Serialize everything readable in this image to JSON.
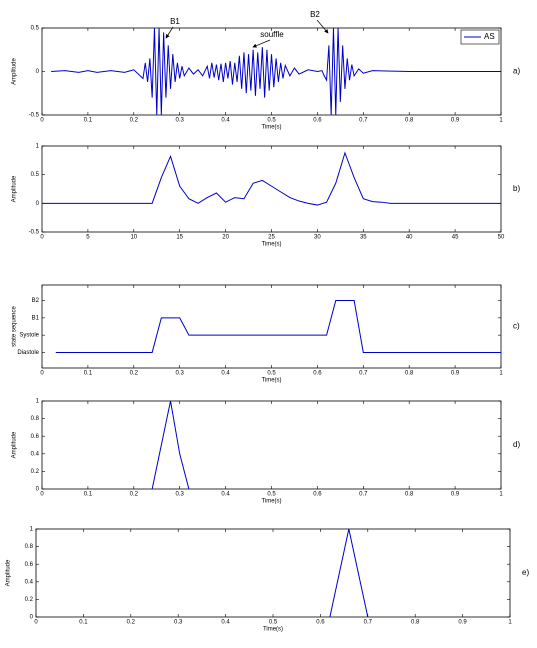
{
  "chart_data": [
    {
      "type": "line",
      "label": "a)",
      "xlabel": "Time(s)",
      "ylabel": "Amplitude",
      "xlim": [
        0,
        1
      ],
      "xticks": [
        0,
        0.1,
        0.2,
        0.3,
        0.4,
        0.5,
        0.6,
        0.7,
        0.8,
        0.9,
        1
      ],
      "ylim": [
        -0.5,
        0.5
      ],
      "yticks": [
        -0.5,
        0,
        0.5
      ],
      "legend": "upper right",
      "annotations": [
        "B1",
        "souffle",
        "B2"
      ],
      "series": [
        {
          "name": "AS",
          "color": "#0000cc",
          "x": [
            0.02,
            0.05,
            0.08,
            0.1,
            0.12,
            0.15,
            0.18,
            0.2,
            0.22,
            0.225,
            0.23,
            0.235,
            0.24,
            0.245,
            0.25,
            0.255,
            0.26,
            0.265,
            0.27,
            0.275,
            0.28,
            0.285,
            0.29,
            0.295,
            0.3,
            0.305,
            0.31,
            0.32,
            0.33,
            0.34,
            0.35,
            0.36,
            0.365,
            0.37,
            0.375,
            0.38,
            0.385,
            0.39,
            0.395,
            0.4,
            0.405,
            0.41,
            0.415,
            0.42,
            0.425,
            0.43,
            0.435,
            0.44,
            0.445,
            0.45,
            0.455,
            0.46,
            0.465,
            0.47,
            0.475,
            0.48,
            0.485,
            0.49,
            0.495,
            0.5,
            0.505,
            0.51,
            0.515,
            0.52,
            0.525,
            0.53,
            0.54,
            0.55,
            0.56,
            0.58,
            0.6,
            0.61,
            0.615,
            0.62,
            0.625,
            0.63,
            0.635,
            0.64,
            0.645,
            0.65,
            0.655,
            0.66,
            0.665,
            0.67,
            0.675,
            0.68,
            0.69,
            0.7,
            0.72,
            0.8,
            0.9,
            1.0
          ],
          "values": [
            0,
            0.01,
            -0.01,
            0.01,
            -0.01,
            0.01,
            -0.01,
            0.02,
            -0.08,
            0.1,
            -0.12,
            0.15,
            -0.3,
            0.5,
            -0.5,
            0.5,
            -0.5,
            0.45,
            -0.3,
            0.3,
            -0.2,
            0.2,
            -0.12,
            0.1,
            -0.08,
            0.06,
            -0.05,
            0.04,
            -0.03,
            0.02,
            -0.05,
            0.06,
            -0.08,
            0.1,
            -0.07,
            0.08,
            -0.1,
            0.09,
            -0.12,
            0.1,
            -0.08,
            0.12,
            -0.15,
            0.1,
            -0.12,
            0.18,
            -0.2,
            0.22,
            -0.25,
            0.2,
            -0.22,
            0.25,
            -0.28,
            0.22,
            -0.2,
            0.28,
            -0.3,
            0.25,
            -0.22,
            0.2,
            -0.18,
            0.15,
            -0.12,
            0.1,
            -0.08,
            0.07,
            -0.05,
            0.04,
            -0.03,
            0.02,
            0,
            0.01,
            -0.05,
            -0.1,
            0.3,
            -0.5,
            0.5,
            -0.5,
            0.5,
            -0.35,
            0.3,
            -0.2,
            0.15,
            -0.1,
            0.08,
            -0.05,
            0.03,
            -0.02,
            0.01,
            0,
            0,
            0
          ]
        }
      ]
    },
    {
      "type": "line",
      "label": "b)",
      "xlabel": "Time(s)",
      "ylabel": "Amplitude",
      "xlim": [
        0,
        50
      ],
      "xticks": [
        0,
        5,
        10,
        15,
        20,
        25,
        30,
        35,
        40,
        45,
        50
      ],
      "ylim": [
        -0.5,
        1
      ],
      "yticks": [
        -0.5,
        0,
        0.5,
        1
      ],
      "color": "#0000cc",
      "x": [
        0,
        10,
        11,
        12,
        13,
        14,
        15,
        16,
        17,
        18,
        19,
        20,
        21,
        22,
        23,
        24,
        25,
        26,
        27,
        28,
        29,
        30,
        31,
        32,
        33,
        34,
        35,
        36,
        37,
        38,
        50
      ],
      "values": [
        0,
        0,
        0,
        0,
        0.45,
        0.82,
        0.3,
        0.08,
        0,
        0.1,
        0.18,
        0.02,
        0.1,
        0.08,
        0.35,
        0.4,
        0.3,
        0.2,
        0.1,
        0.04,
        0,
        -0.03,
        0.02,
        0.35,
        0.88,
        0.45,
        0.08,
        0.03,
        0.02,
        0,
        0
      ]
    },
    {
      "type": "line",
      "label": "c)",
      "xlabel": "Time(s)",
      "ylabel": "state sequence",
      "xlim": [
        0,
        1
      ],
      "xticks": [
        0,
        0.1,
        0.2,
        0.3,
        0.4,
        0.5,
        0.6,
        0.7,
        0.8,
        0.9,
        1
      ],
      "ylim": [
        0.1,
        4.9
      ],
      "yticks": [
        {
          "value": 1,
          "label": "Diastole"
        },
        {
          "value": 2,
          "label": "Systole"
        },
        {
          "value": 3,
          "label": "B1"
        },
        {
          "value": 4,
          "label": "B2"
        }
      ],
      "color": "#0000cc",
      "x": [
        0.03,
        0.24,
        0.26,
        0.3,
        0.32,
        0.62,
        0.64,
        0.68,
        0.7,
        1.0
      ],
      "values": [
        1,
        1,
        3,
        3,
        2,
        2,
        4,
        4,
        1,
        1
      ]
    },
    {
      "type": "line",
      "label": "d)",
      "xlabel": "Time(s)",
      "ylabel": "Amplitude",
      "xlim": [
        0,
        1
      ],
      "xticks": [
        0,
        0.1,
        0.2,
        0.3,
        0.4,
        0.5,
        0.6,
        0.7,
        0.8,
        0.9,
        1
      ],
      "ylim": [
        0,
        1
      ],
      "yticks": [
        0,
        0.2,
        0.4,
        0.6,
        0.8,
        1
      ],
      "color": "#0000cc",
      "x": [
        0.24,
        0.28,
        0.3,
        0.32
      ],
      "values": [
        0,
        1,
        0.4,
        0
      ]
    },
    {
      "type": "line",
      "label": "e)",
      "xlabel": "Time(s)",
      "ylabel": "Amplitude",
      "xlim": [
        0,
        1
      ],
      "xticks": [
        0,
        0.1,
        0.2,
        0.3,
        0.4,
        0.5,
        0.6,
        0.7,
        0.8,
        0.9,
        1
      ],
      "ylim": [
        0,
        1
      ],
      "yticks": [
        0,
        0.2,
        0.4,
        0.6,
        0.8,
        1
      ],
      "color": "#0000cc",
      "x": [
        0.62,
        0.66,
        0.7
      ],
      "values": [
        0,
        1,
        0
      ]
    }
  ]
}
